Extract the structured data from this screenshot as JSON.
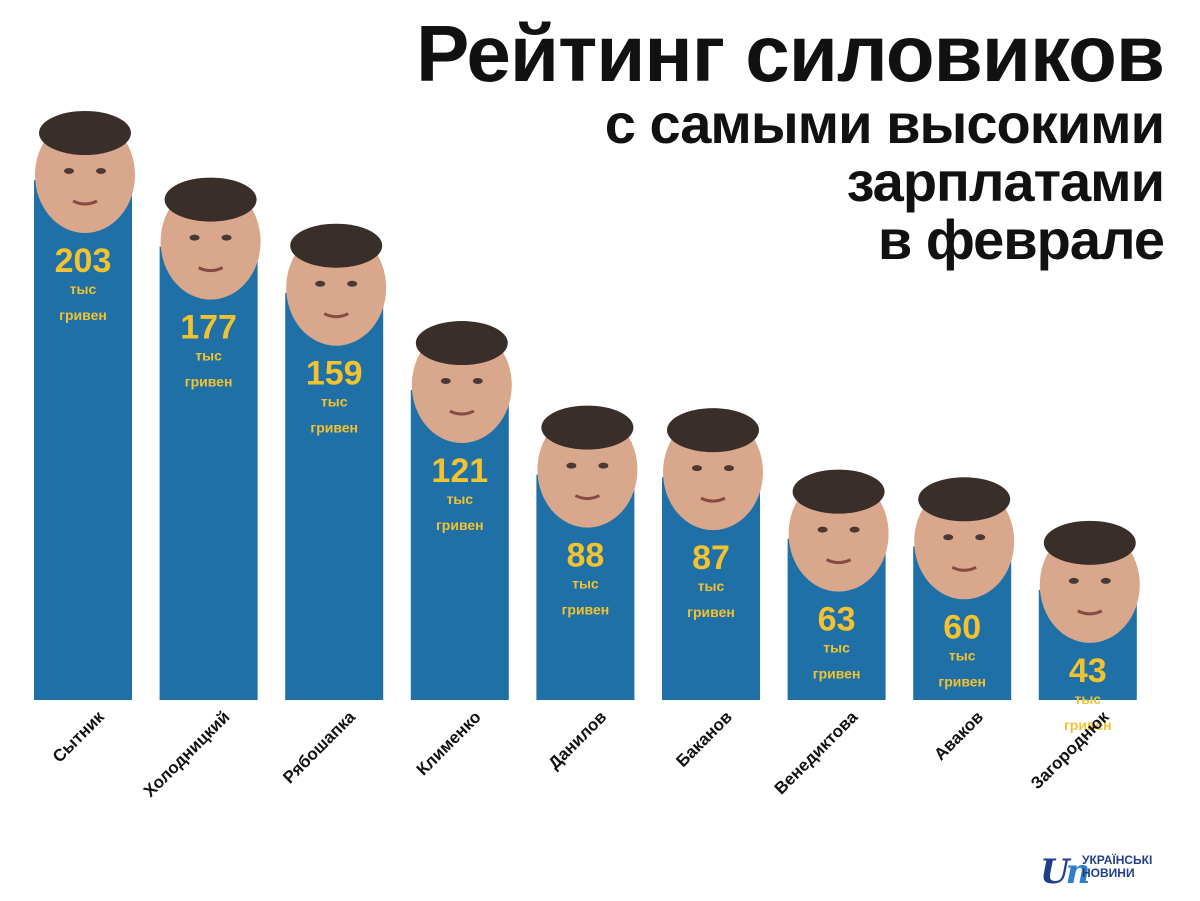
{
  "title": {
    "line1": "Рейтинг силовиков",
    "line2": "с самыми высокими",
    "line3": "зарплатами",
    "line4": "в феврале"
  },
  "colors": {
    "bar": "#1f70a6",
    "value": "#f2c230",
    "text": "#111111"
  },
  "chart_data": {
    "type": "bar",
    "categories": [
      "Сытник",
      "Холодницкий",
      "Рябошапка",
      "Клименко",
      "Данилов",
      "Баканов",
      "Венедиктова",
      "Аваков",
      "Загороднюк"
    ],
    "values": [
      203,
      177,
      159,
      121,
      88,
      87,
      63,
      60,
      43
    ],
    "value_unit_line1": "тыс",
    "value_unit_line2": "гривен",
    "title": "Рейтинг силовиков с самыми высокими зарплатами в феврале",
    "xlabel": "",
    "ylabel": "",
    "grid": false,
    "legend": "none"
  },
  "logo": {
    "line1": "УКРАЇНСЬКІ",
    "line2": "НОВИНИ",
    "icon": "logo-un-icon"
  }
}
